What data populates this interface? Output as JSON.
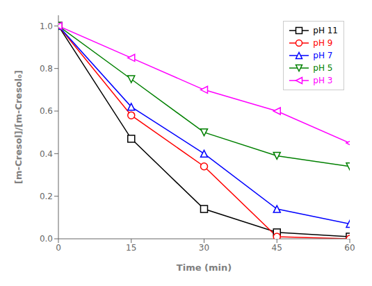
{
  "chart_data": {
    "type": "line",
    "x": [
      0,
      15,
      30,
      45,
      60
    ],
    "series": [
      {
        "name": "pH 11",
        "color": "#000000",
        "marker": "square",
        "values": [
          1.0,
          0.47,
          0.14,
          0.03,
          0.01
        ]
      },
      {
        "name": "pH 9",
        "color": "#ff0000",
        "marker": "circle",
        "values": [
          1.0,
          0.58,
          0.34,
          0.01,
          0.0
        ]
      },
      {
        "name": "pH 7",
        "color": "#0000ff",
        "marker": "triangle-up",
        "values": [
          1.0,
          0.62,
          0.4,
          0.14,
          0.07
        ]
      },
      {
        "name": "pH 5",
        "color": "#008000",
        "marker": "triangle-down",
        "values": [
          1.0,
          0.75,
          0.5,
          0.39,
          0.34
        ]
      },
      {
        "name": "pH 3",
        "color": "#ff00ff",
        "marker": "triangle-left",
        "values": [
          1.0,
          0.85,
          0.7,
          0.6,
          0.45
        ]
      }
    ],
    "xlabel": "Time (min)",
    "ylabel": "[m-Cresol]/[m-Cresol₀]",
    "xlim": [
      0,
      60
    ],
    "ylim": [
      0.0,
      1.05
    ],
    "xticks": [
      0,
      15,
      30,
      45,
      60
    ],
    "yticks": [
      {
        "value": 0.0,
        "label": "0.0"
      },
      0.2,
      0.4,
      0.6,
      0.8,
      {
        "value": 1.0,
        "label": "1.0"
      }
    ],
    "legend": "upper right",
    "grid": false
  }
}
